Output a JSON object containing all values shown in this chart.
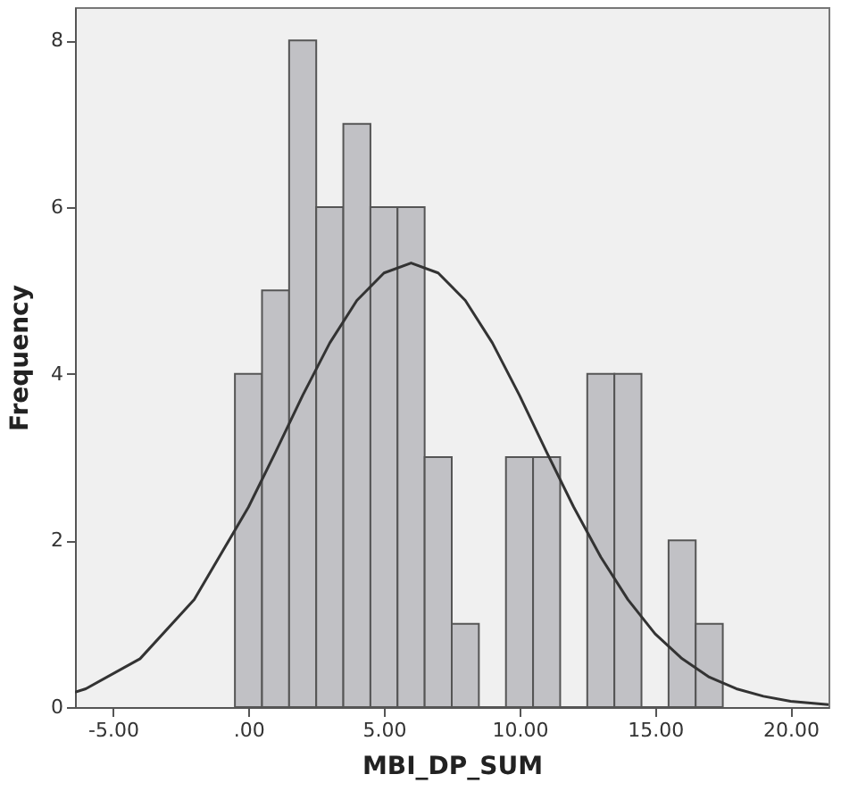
{
  "chart_data": {
    "type": "histogram",
    "xlabel": "MBI_DP_SUM",
    "ylabel": "Frequency",
    "bins": [
      -0.5,
      0.5,
      1.5,
      2.5,
      3.5,
      4.5,
      5.5,
      6.5,
      7.5,
      8.5,
      9.5,
      10.5,
      11.5,
      12.5,
      13.5,
      14.5,
      15.5,
      16.5,
      17.5
    ],
    "values": [
      4,
      5,
      8,
      6,
      7,
      6,
      6,
      3,
      1,
      0,
      3,
      3,
      0,
      4,
      4,
      0,
      2,
      1
    ],
    "color": "#c1c1c5",
    "series": [
      {
        "type": "line",
        "color": "#333333",
        "x": [
          -6.4,
          -6,
          -4,
          -2,
          0,
          1,
          2,
          3,
          4,
          5,
          6,
          7,
          8,
          9,
          10,
          11,
          12,
          13,
          14,
          15,
          16,
          17,
          18,
          19,
          20,
          21.4
        ],
        "values": [
          0.18,
          0.22,
          0.58,
          1.29,
          2.4,
          3.06,
          3.74,
          4.37,
          4.88,
          5.21,
          5.33,
          5.21,
          4.88,
          4.37,
          3.74,
          3.06,
          2.4,
          1.8,
          1.29,
          0.88,
          0.58,
          0.36,
          0.22,
          0.13,
          0.07,
          0.03
        ]
      }
    ],
    "xlim": [
      -6.4,
      21.4
    ],
    "xticks": [
      {
        "value": -5,
        "label": "-5.00"
      },
      {
        "value": 0,
        "label": ".00"
      },
      {
        "value": 5,
        "label": "5.00"
      },
      {
        "value": 10,
        "label": "10.00"
      },
      {
        "value": 15,
        "label": "15.00"
      },
      {
        "value": 20,
        "label": "20.00"
      }
    ],
    "ylim": [
      0,
      8.4
    ],
    "yticks": [
      0,
      2,
      4,
      6,
      8
    ],
    "grid": false
  }
}
